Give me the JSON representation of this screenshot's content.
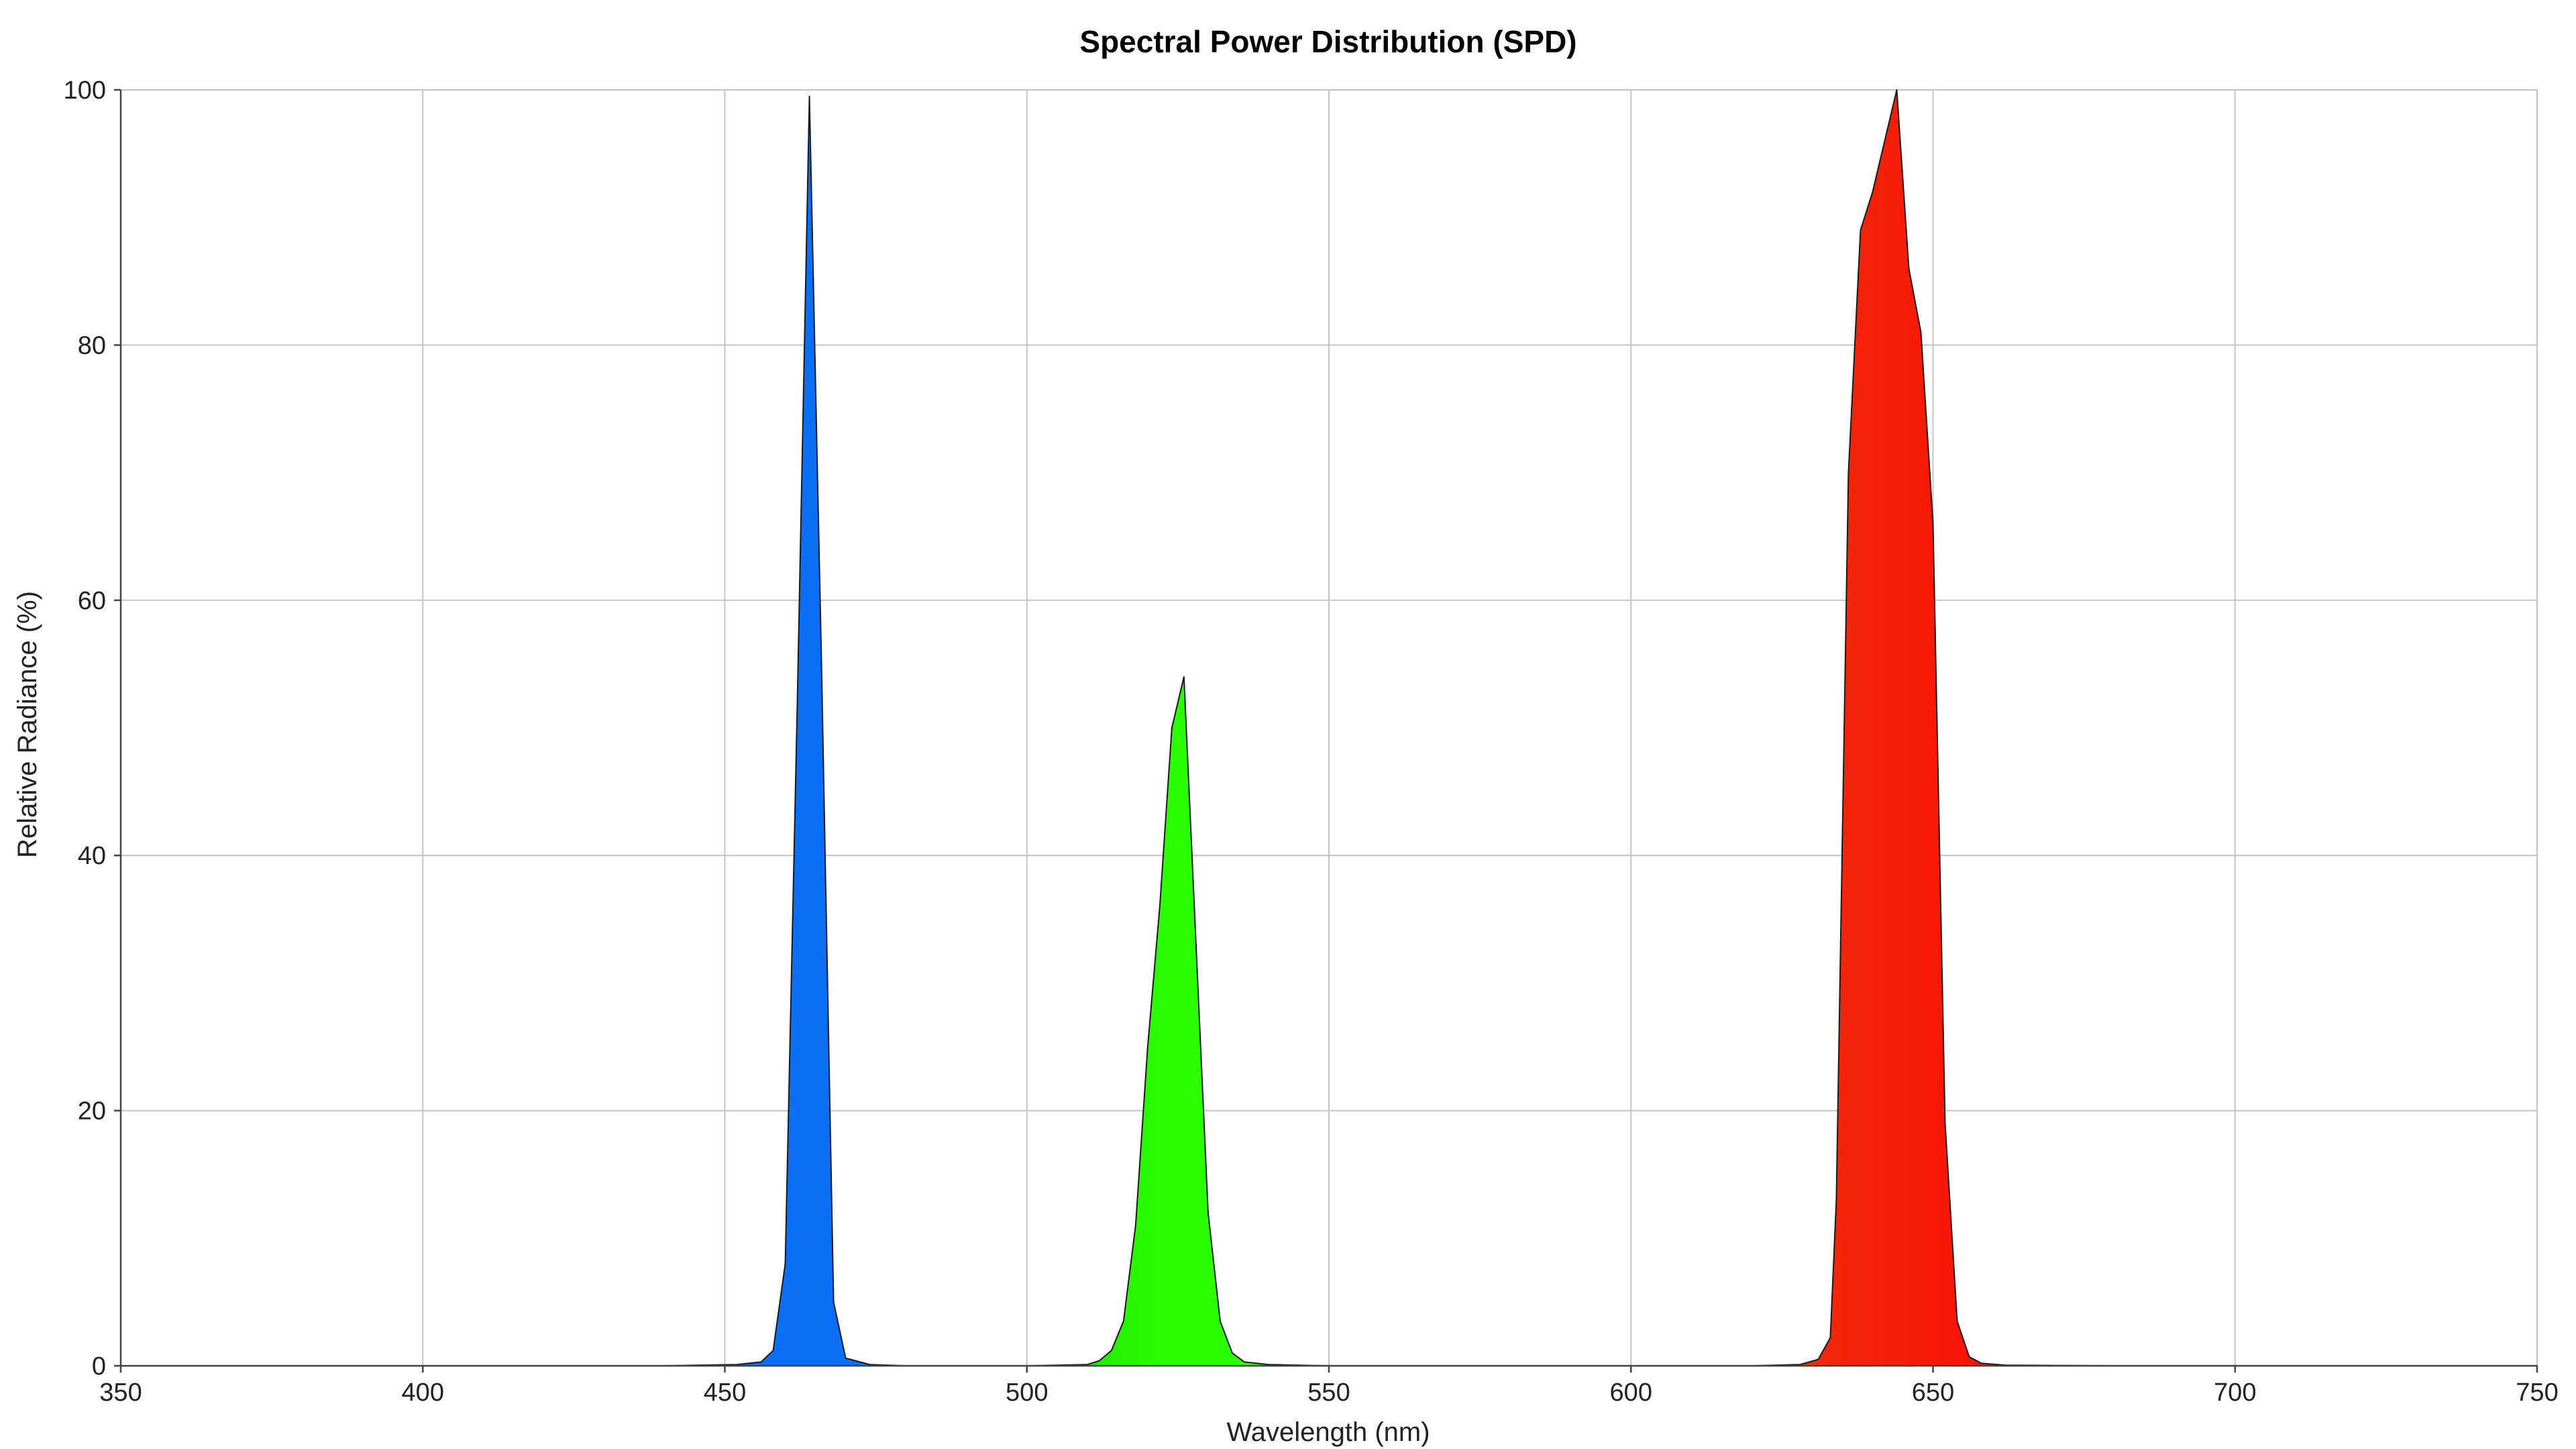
{
  "chart_data": {
    "type": "area",
    "title": "Spectral Power Distribution (SPD)",
    "xlabel": "Wavelength (nm)",
    "ylabel": "Relative Radiance (%)",
    "xlim": [
      350,
      750
    ],
    "ylim": [
      0,
      100
    ],
    "x_ticks": [
      350,
      400,
      450,
      500,
      550,
      600,
      650,
      700,
      750
    ],
    "y_ticks": [
      0,
      20,
      40,
      60,
      80,
      100
    ],
    "grid": true,
    "legend": "none",
    "series": [
      {
        "color": "#0a6ff5",
        "color_dark": "#0048d8",
        "x": [
          380,
          440,
          452,
          456,
          458,
          460,
          462,
          464,
          466,
          468,
          470,
          474,
          480,
          490,
          500
        ],
        "y": [
          0,
          0,
          0.1,
          0.3,
          1.2,
          8,
          52,
          99.5,
          55,
          5,
          0.6,
          0.1,
          0,
          0,
          0
        ]
      },
      {
        "color": "#2aff00",
        "color_dark": "#18c800",
        "x": [
          490,
          500,
          510,
          512,
          514,
          516,
          518,
          520,
          522,
          524,
          526,
          528,
          530,
          532,
          534,
          536,
          540,
          550
        ],
        "y": [
          0,
          0,
          0.1,
          0.4,
          1.2,
          3.5,
          11,
          25,
          36,
          50,
          54,
          33,
          12,
          3.5,
          1,
          0.3,
          0.1,
          0
        ]
      },
      {
        "color": "#ff0000",
        "color_dark": "#e84010",
        "x": [
          600,
          620,
          628,
          631,
          633,
          634,
          636,
          638,
          640,
          642,
          644,
          646,
          648,
          650,
          652,
          654,
          656,
          658,
          662,
          680,
          750
        ],
        "y": [
          0,
          0,
          0.1,
          0.5,
          2.2,
          13,
          70,
          89,
          92,
          96,
          100,
          86,
          81,
          66,
          19,
          3.5,
          0.7,
          0.2,
          0.05,
          0,
          0
        ]
      }
    ]
  }
}
